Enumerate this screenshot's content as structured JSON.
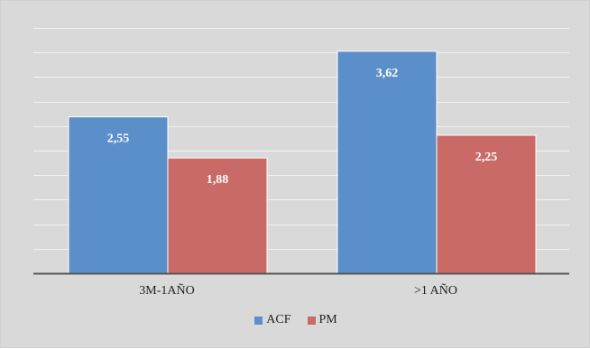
{
  "chart_data": {
    "type": "bar",
    "categories": [
      "3M-1AÑO",
      ">1 AÑO"
    ],
    "series": [
      {
        "name": "ACF",
        "values": [
          2.55,
          3.62
        ],
        "labels": [
          "2,55",
          "3,62"
        ],
        "color": "#5b8fca"
      },
      {
        "name": "PM",
        "values": [
          1.88,
          2.25
        ],
        "labels": [
          "1,88",
          "2,25"
        ],
        "color": "#c96a66"
      }
    ],
    "ylim": [
      0,
      4.0
    ],
    "grid": true,
    "legend_position": "bottom",
    "title": "",
    "xlabel": "",
    "ylabel": ""
  }
}
